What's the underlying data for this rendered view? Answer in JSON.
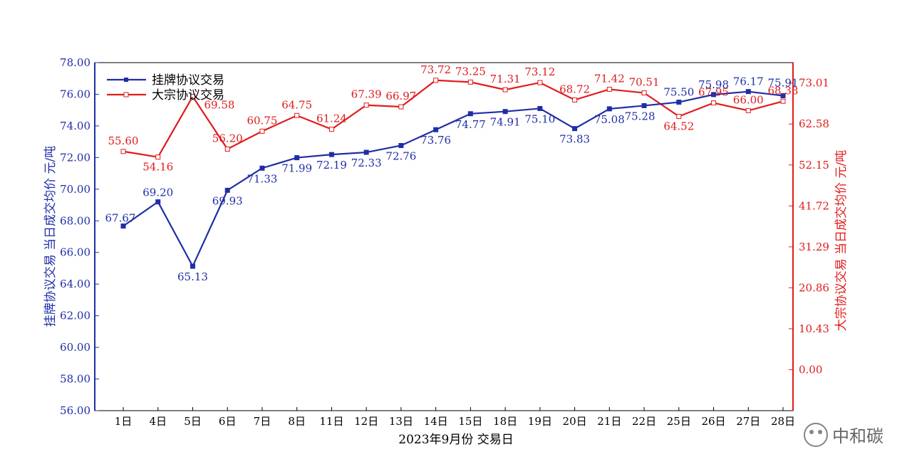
{
  "chart_data": {
    "type": "line",
    "xlabel": "2023年9月份 交易日",
    "ylabel_left": "挂牌协议交易 当日成交均价 元/吨",
    "ylabel_right": "大宗协议交易 当日成交均价 元/吨",
    "categories": [
      "1日",
      "4日",
      "5日",
      "6日",
      "7日",
      "8日",
      "11日",
      "12日",
      "13日",
      "14日",
      "15日",
      "18日",
      "19日",
      "20日",
      "21日",
      "22日",
      "25日",
      "26日",
      "27日",
      "28日"
    ],
    "left_axis": {
      "ylim": [
        56,
        78
      ],
      "ticks": [
        "56.00",
        "58.00",
        "60.00",
        "62.00",
        "64.00",
        "66.00",
        "68.00",
        "70.00",
        "72.00",
        "74.00",
        "76.00",
        "78.00"
      ]
    },
    "right_axis": {
      "ylim": [
        -10.43,
        78.215
      ],
      "ticks": [
        "0.00",
        "10.43",
        "20.86",
        "31.29",
        "41.72",
        "52.15",
        "62.58",
        "73.01"
      ]
    },
    "series": [
      {
        "name": "挂牌协议交易",
        "axis": "left",
        "color": "#1f2ea6",
        "marker": "filled-square",
        "values": [
          67.67,
          69.2,
          65.13,
          69.93,
          71.33,
          71.99,
          72.19,
          72.33,
          72.76,
          73.76,
          74.77,
          74.91,
          75.1,
          73.83,
          75.08,
          75.28,
          75.5,
          75.98,
          76.17,
          75.91
        ],
        "labels": [
          "67.67",
          "69.20",
          "65.13",
          "69.93",
          "71.33",
          "71.99",
          "72.19",
          "72.33",
          "72.76",
          "73.76",
          "74.77",
          "74.91",
          "75.10",
          "73.83",
          "75.08",
          "75.28",
          "75.50",
          "75.98",
          "76.17",
          "75.91"
        ]
      },
      {
        "name": "大宗协议交易",
        "axis": "right",
        "color": "#e01b1b",
        "marker": "open-square",
        "values": [
          55.6,
          54.16,
          69.58,
          56.2,
          60.75,
          64.75,
          61.24,
          67.39,
          66.97,
          73.72,
          73.25,
          71.31,
          73.12,
          68.72,
          71.42,
          70.51,
          64.52,
          67.95,
          66.0,
          68.38
        ],
        "labels": [
          "55.60",
          "54.16",
          "69.58",
          "56.20",
          "60.75",
          "64.75",
          "61.24",
          "67.39",
          "66.97",
          "73.72",
          "73.25",
          "71.31",
          "73.12",
          "68.72",
          "71.42",
          "70.51",
          "64.52",
          "67.95",
          "66.00",
          "68.38"
        ]
      }
    ],
    "legend": "top-left",
    "grid": false
  },
  "watermark": {
    "text": "中和碳",
    "icon": "wechat-icon"
  }
}
